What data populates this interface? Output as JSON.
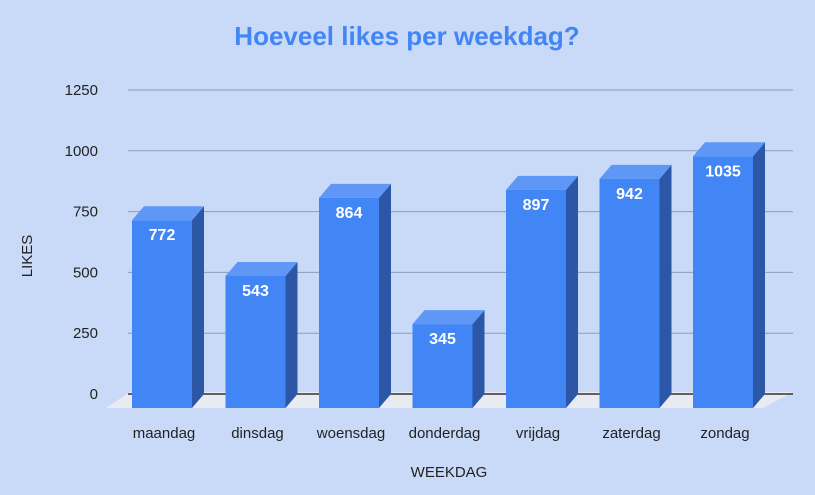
{
  "chart_data": {
    "type": "bar",
    "title": "Hoeveel likes per weekdag?",
    "xlabel": "WEEKDAG",
    "ylabel": "LIKES",
    "ylim": [
      0,
      1250
    ],
    "yticks": [
      0,
      250,
      500,
      750,
      1000,
      1250
    ],
    "categories": [
      "maandag",
      "dinsdag",
      "woensdag",
      "donderdag",
      "vrijdag",
      "zaterdag",
      "zondag"
    ],
    "values": [
      772,
      543,
      864,
      345,
      897,
      942,
      1035
    ],
    "grid": true,
    "legend": "none",
    "style": "3d",
    "colors": {
      "background": "#c9daf8",
      "title": "#4285f4",
      "bar_front": "#4285f4",
      "bar_top": "#5e97f6",
      "bar_side": "#2c56a6",
      "floor": "#e8ebf1",
      "gridline": "#8c9bbd",
      "axis_text": "#222222",
      "data_label": "#ffffff"
    }
  }
}
